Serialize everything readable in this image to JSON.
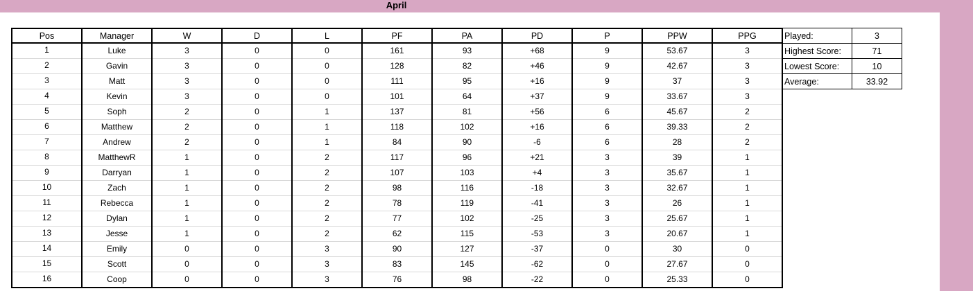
{
  "title": "April",
  "colors": {
    "frame": "#d8a7c3",
    "border": "#000000",
    "gridline": "#d8d8d8"
  },
  "table": {
    "headers": [
      "Pos",
      "Manager",
      "W",
      "D",
      "L",
      "PF",
      "PA",
      "PD",
      "P",
      "PPW",
      "PPG"
    ],
    "rows": [
      [
        "1",
        "Luke",
        "3",
        "0",
        "0",
        "161",
        "93",
        "+68",
        "9",
        "53.67",
        "3"
      ],
      [
        "2",
        "Gavin",
        "3",
        "0",
        "0",
        "128",
        "82",
        "+46",
        "9",
        "42.67",
        "3"
      ],
      [
        "3",
        "Matt",
        "3",
        "0",
        "0",
        "111",
        "95",
        "+16",
        "9",
        "37",
        "3"
      ],
      [
        "4",
        "Kevin",
        "3",
        "0",
        "0",
        "101",
        "64",
        "+37",
        "9",
        "33.67",
        "3"
      ],
      [
        "5",
        "Soph",
        "2",
        "0",
        "1",
        "137",
        "81",
        "+56",
        "6",
        "45.67",
        "2"
      ],
      [
        "6",
        "Matthew",
        "2",
        "0",
        "1",
        "118",
        "102",
        "+16",
        "6",
        "39.33",
        "2"
      ],
      [
        "7",
        "Andrew",
        "2",
        "0",
        "1",
        "84",
        "90",
        "-6",
        "6",
        "28",
        "2"
      ],
      [
        "8",
        "MatthewR",
        "1",
        "0",
        "2",
        "117",
        "96",
        "+21",
        "3",
        "39",
        "1"
      ],
      [
        "9",
        "Darryan",
        "1",
        "0",
        "2",
        "107",
        "103",
        "+4",
        "3",
        "35.67",
        "1"
      ],
      [
        "10",
        "Zach",
        "1",
        "0",
        "2",
        "98",
        "116",
        "-18",
        "3",
        "32.67",
        "1"
      ],
      [
        "11",
        "Rebecca",
        "1",
        "0",
        "2",
        "78",
        "119",
        "-41",
        "3",
        "26",
        "1"
      ],
      [
        "12",
        "Dylan",
        "1",
        "0",
        "2",
        "77",
        "102",
        "-25",
        "3",
        "25.67",
        "1"
      ],
      [
        "13",
        "Jesse",
        "1",
        "0",
        "2",
        "62",
        "115",
        "-53",
        "3",
        "20.67",
        "1"
      ],
      [
        "14",
        "Emily",
        "0",
        "0",
        "3",
        "90",
        "127",
        "-37",
        "0",
        "30",
        "0"
      ],
      [
        "15",
        "Scott",
        "0",
        "0",
        "3",
        "83",
        "145",
        "-62",
        "0",
        "27.67",
        "0"
      ],
      [
        "16",
        "Coop",
        "0",
        "0",
        "3",
        "76",
        "98",
        "-22",
        "0",
        "25.33",
        "0"
      ]
    ]
  },
  "stats": [
    {
      "label": "Played:",
      "value": "3"
    },
    {
      "label": "Highest Score:",
      "value": "71"
    },
    {
      "label": "Lowest Score:",
      "value": "10"
    },
    {
      "label": "Average:",
      "value": "33.92"
    }
  ]
}
